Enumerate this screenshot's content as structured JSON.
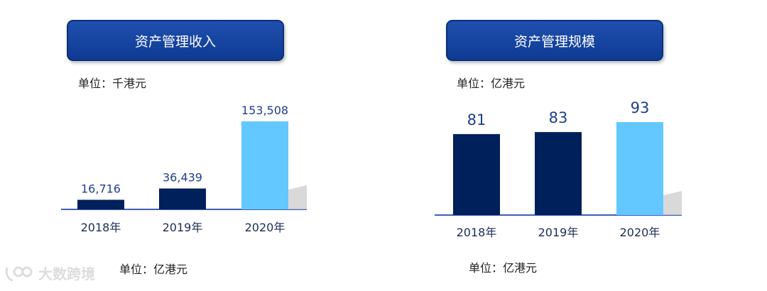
{
  "colors": {
    "title_bg": "#1a4aa6",
    "bar_dark": "#00205b",
    "bar_light": "#63c8ff",
    "axis": "#3f5fb5",
    "label": "#1e3f8f"
  },
  "left_panel": {
    "title": "资产管理收入",
    "unit_top": "单位：千港元",
    "unit_bottom": "单位：亿港元"
  },
  "right_panel": {
    "title": "资产管理规模",
    "unit_top": "单位：亿港元",
    "unit_bottom": "单位：亿港元"
  },
  "watermark": {
    "text": "大数跨境",
    "icon": "logo-icon"
  },
  "chart_data": [
    {
      "type": "bar",
      "title": "资产管理收入",
      "unit": "单位：千港元",
      "categories": [
        "2018年",
        "2019年",
        "2020年"
      ],
      "values": [
        16716,
        36439,
        153508
      ],
      "value_labels": [
        "16,716",
        "36,439",
        "153,508"
      ],
      "ylim": [
        0,
        153508
      ],
      "highlight_index": 2,
      "grid": false
    },
    {
      "type": "bar",
      "title": "资产管理规模",
      "unit": "单位：亿港元",
      "categories": [
        "2018年",
        "2019年",
        "2020年"
      ],
      "values": [
        81,
        83,
        93
      ],
      "value_labels": [
        "81",
        "83",
        "93"
      ],
      "ylim": [
        0,
        93
      ],
      "highlight_index": 2,
      "grid": false
    }
  ]
}
